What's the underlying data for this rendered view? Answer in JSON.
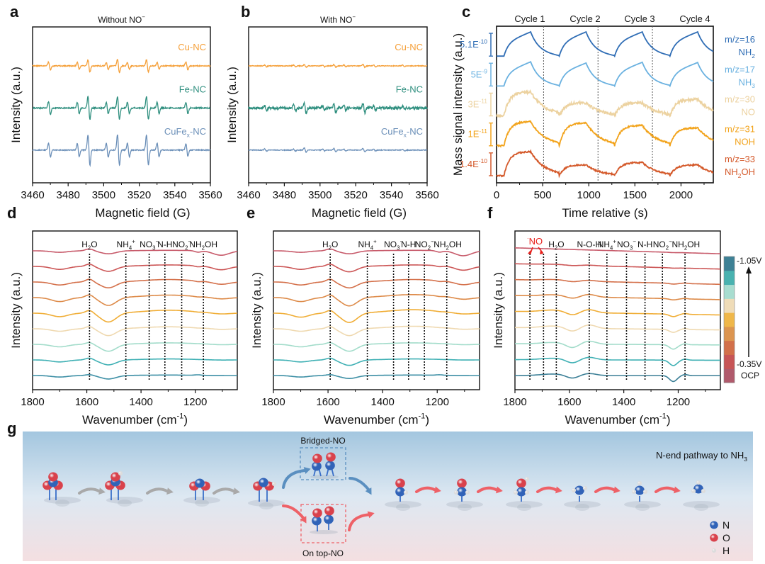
{
  "panel_letters": [
    "a",
    "b",
    "c",
    "d",
    "e",
    "f",
    "g"
  ],
  "chart_data": [
    {
      "id": "a",
      "type": "line",
      "title": "Without NO3-",
      "title_parts": {
        "base": "Without NO",
        "sub": "3",
        "sup": "−"
      },
      "xlabel": "Magnetic field (G)",
      "ylabel": "Intensity (a.u.)",
      "xlim": [
        3460,
        3560
      ],
      "xticks": [
        3460,
        3480,
        3500,
        3520,
        3540,
        3560
      ],
      "grid": false,
      "peak_positions_G": [
        3469.5,
        3485.7,
        3491.7,
        3502.0,
        3508.3,
        3513.9,
        3524.6,
        3530.6,
        3546.8
      ],
      "series": [
        {
          "name": "Cu-NC",
          "label_base": "Cu-NC",
          "color": "#f5a03a",
          "offset": 2,
          "peak_amplitudes": [
            0.35,
            0.3,
            0.55,
            0.3,
            0.6,
            0.3,
            0.55,
            0.3,
            0.35
          ],
          "noise": 0.04
        },
        {
          "name": "Fe-NC",
          "label_base": "Fe-NC",
          "color": "#2f8f7f",
          "offset": 1,
          "peak_amplitudes": [
            0.55,
            0.5,
            1.0,
            0.5,
            1.0,
            0.5,
            1.0,
            0.5,
            0.5
          ],
          "noise": 0.05
        },
        {
          "name": "CuFex-NC",
          "label_base": "CuFe",
          "label_sub": "x",
          "label_tail": "-NC",
          "color": "#6b8fb8",
          "offset": 0,
          "peak_amplitudes": [
            0.6,
            0.6,
            1.35,
            0.6,
            1.35,
            0.6,
            1.3,
            0.6,
            0.55
          ],
          "noise": 0.04
        }
      ]
    },
    {
      "id": "b",
      "type": "line",
      "title": "With NO3-",
      "title_parts": {
        "base": "With NO",
        "sub": "3",
        "sup": "−"
      },
      "xlabel": "Magnetic field (G)",
      "ylabel": "Intensity (a.u.)",
      "xlim": [
        3460,
        3560
      ],
      "xticks": [
        3460,
        3480,
        3500,
        3520,
        3540,
        3560
      ],
      "grid": false,
      "peak_positions_G": [
        3469.5,
        3485.7,
        3491.7,
        3502.0,
        3508.3,
        3513.9,
        3524.6,
        3530.6,
        3546.8
      ],
      "series": [
        {
          "name": "Cu-NC",
          "label_base": "Cu-NC",
          "color": "#f5a03a",
          "offset": 2,
          "peak_amplitudes": [
            0.08,
            0.08,
            0.12,
            0.08,
            0.12,
            0.08,
            0.12,
            0.08,
            0.08
          ],
          "noise": 0.03
        },
        {
          "name": "Fe-NC",
          "label_base": "Fe-NC",
          "color": "#2f8f7f",
          "offset": 1,
          "peak_amplitudes": [
            0.2,
            0.25,
            0.45,
            0.2,
            0.4,
            0.2,
            0.4,
            0.2,
            0.15
          ],
          "noise": 0.12
        },
        {
          "name": "CuFex-NC",
          "label_base": "CuFe",
          "label_sub": "x",
          "label_tail": "-NC",
          "color": "#6b8fb8",
          "offset": 0,
          "peak_amplitudes": [
            0.1,
            0.08,
            0.18,
            0.08,
            0.15,
            0.08,
            0.15,
            0.08,
            0.08
          ],
          "noise": 0.03
        }
      ]
    },
    {
      "id": "c",
      "type": "line",
      "xlabel": "Time relative (s)",
      "ylabel": "Mass signal intensity (a.u.)",
      "xlim": [
        0,
        2350
      ],
      "xticks": [
        0,
        500,
        1000,
        1500,
        2000
      ],
      "cycle_labels": [
        "Cycle 1",
        "Cycle 2",
        "Cycle 3",
        "Cycle 4"
      ],
      "cycle_boundaries_s": [
        510,
        1100,
        1690
      ],
      "cycle_starts_s": [
        80,
        680,
        1280,
        1880
      ],
      "cycle_peaks_s": [
        370,
        970,
        1580,
        2180
      ],
      "grid": false,
      "series": [
        {
          "name": "m/z=16 NH2",
          "mz": "m/z=16",
          "species_base": "NH",
          "species_sub": "2",
          "species_tail": "",
          "scale_bar": "5.1E",
          "scale_exp": "-10",
          "color": "#2f6db5",
          "shape": "smooth",
          "cycle_heights": [
            1.0,
            1.0,
            1.0,
            1.0
          ]
        },
        {
          "name": "m/z=17 NH3",
          "mz": "m/z=17",
          "species_base": "NH",
          "species_sub": "3",
          "species_tail": "",
          "scale_bar": "5E",
          "scale_exp": "-9",
          "color": "#6ab1e0",
          "shape": "smooth",
          "cycle_heights": [
            1.0,
            0.95,
            0.98,
            0.97
          ]
        },
        {
          "name": "m/z=30 NO",
          "mz": "m/z=30",
          "species_base": "NO",
          "species_sub": "",
          "species_tail": "",
          "scale_bar": "3E",
          "scale_exp": "-11",
          "color": "#ecd2a0",
          "shape": "noisy",
          "cycle_heights": [
            1.0,
            0.55,
            0.55,
            0.7
          ]
        },
        {
          "name": "m/z=31 NOH",
          "mz": "m/z=31",
          "species_base": "NOH",
          "species_sub": "",
          "species_tail": "",
          "scale_bar": "1E",
          "scale_exp": "-11",
          "color": "#f2a31b",
          "shape": "plateau",
          "cycle_heights": [
            1.0,
            0.95,
            0.85,
            0.75
          ]
        },
        {
          "name": "m/z=33 NH2OH",
          "mz": "m/z=33",
          "species_base": "NH",
          "species_sub": "2",
          "species_tail": "OH",
          "scale_bar": "1.4E",
          "scale_exp": "-10",
          "color": "#d4592a",
          "shape": "plateau",
          "cycle_heights": [
            1.0,
            0.45,
            0.55,
            0.45
          ]
        }
      ]
    },
    {
      "id": "d",
      "type": "line",
      "xlabel": "Wavenumber (cm-1)",
      "xlabel_parts": {
        "base": "Wavenumber (cm",
        "sup": "-1",
        "tail": ")"
      },
      "ylabel": "Intensity (a.u.)",
      "xlim": [
        1800,
        1045
      ],
      "xticks": [
        1800,
        1600,
        1400,
        1200
      ],
      "grid": false,
      "markers": [
        {
          "pos": 1590,
          "base": "H",
          "sub": "2",
          "tail": "O",
          "sup": "",
          "dot": false
        },
        {
          "pos": 1456,
          "base": "NH",
          "sub": "4",
          "sup": "+",
          "tail": "",
          "dot": false
        },
        {
          "pos": 1370,
          "base": "NO",
          "sub": "3",
          "sup": "−",
          "tail": "",
          "dot": false
        },
        {
          "pos": 1312,
          "base": "N-H",
          "sub": "",
          "sup": "",
          "tail": "",
          "dot": false
        },
        {
          "pos": 1250,
          "base": "NO",
          "sub": "2",
          "sup": "−",
          "tail": "",
          "dot": false
        },
        {
          "pos": 1170,
          "base": "NH",
          "sub": "2",
          "tail": "OH",
          "sup": "",
          "dot": false
        }
      ],
      "series_count": 9,
      "features": [
        {
          "center": 1520,
          "width": 28,
          "depths": [
            0.3,
            0.5,
            0.6,
            0.8,
            0.9,
            0.7,
            0.7,
            0.5,
            0.35
          ]
        },
        {
          "center": 1700,
          "width": 30,
          "depths": [
            0.15,
            0.3,
            0.3,
            0.4,
            0.35,
            0.25,
            0.25,
            0.2,
            0.15
          ]
        },
        {
          "center": 1590,
          "width": 14,
          "depths": [
            -0.2,
            -0.25,
            -0.3,
            -0.3,
            -0.3,
            -0.25,
            -0.2,
            -0.2,
            -0.1
          ]
        },
        {
          "center": 1300,
          "width": 90,
          "depths": [
            -0.05,
            -0.15,
            -0.25,
            -0.25,
            -0.3,
            -0.2,
            -0.15,
            -0.1,
            -0.05
          ]
        },
        {
          "center": 1105,
          "width": 30,
          "depths": [
            0.45,
            0.35,
            0.25,
            0.15,
            0.1,
            0.08,
            0.05,
            0.02,
            0.0
          ]
        },
        {
          "center": 1190,
          "width": 12,
          "depths": [
            0.15,
            0.1,
            0.08,
            0.05,
            0.03,
            0.02,
            0.0,
            0.0,
            -0.05
          ]
        }
      ]
    },
    {
      "id": "e",
      "type": "line",
      "xlabel": "Wavenumber (cm-1)",
      "xlabel_parts": {
        "base": "Wavenumber (cm",
        "sup": "-1",
        "tail": ")"
      },
      "ylabel": "Intensity (a.u.)",
      "xlim": [
        1800,
        1045
      ],
      "xticks": [
        1800,
        1600,
        1400,
        1200
      ],
      "grid": false,
      "markers": [
        {
          "pos": 1592,
          "base": "H",
          "sub": "2",
          "tail": "O",
          "sup": "",
          "dot": false
        },
        {
          "pos": 1456,
          "base": "NH",
          "sub": "4",
          "sup": "+",
          "tail": "",
          "dot": false
        },
        {
          "pos": 1360,
          "base": "NO",
          "sub": "3",
          "sup": "−",
          "tail": "",
          "dot": false
        },
        {
          "pos": 1305,
          "base": "N-H",
          "sub": "",
          "sup": "",
          "tail": "",
          "dot": false
        },
        {
          "pos": 1247,
          "base": "NO",
          "sub": "2",
          "sup": "−",
          "tail": "",
          "dot": false
        },
        {
          "pos": 1165,
          "base": "NH",
          "sub": "2",
          "tail": "OH",
          "sup": "",
          "dot": true
        }
      ],
      "series_count": 9,
      "features": [
        {
          "center": 1522,
          "width": 28,
          "depths": [
            0.3,
            0.55,
            0.6,
            0.85,
            0.95,
            0.7,
            0.7,
            0.55,
            0.3
          ]
        },
        {
          "center": 1700,
          "width": 30,
          "depths": [
            0.15,
            0.3,
            0.3,
            0.4,
            0.4,
            0.25,
            0.25,
            0.2,
            0.15
          ]
        },
        {
          "center": 1592,
          "width": 14,
          "depths": [
            -0.2,
            -0.25,
            -0.3,
            -0.3,
            -0.3,
            -0.25,
            -0.2,
            -0.2,
            -0.1
          ]
        },
        {
          "center": 1290,
          "width": 90,
          "depths": [
            -0.05,
            -0.15,
            -0.25,
            -0.3,
            -0.35,
            -0.25,
            -0.15,
            -0.1,
            -0.05
          ]
        },
        {
          "center": 1105,
          "width": 30,
          "depths": [
            0.5,
            0.4,
            0.3,
            0.2,
            0.12,
            0.08,
            0.05,
            0.02,
            0.0
          ]
        },
        {
          "center": 1192,
          "width": 12,
          "depths": [
            0.15,
            0.1,
            0.08,
            0.05,
            0.03,
            0.02,
            0.0,
            0.0,
            -0.05
          ]
        }
      ]
    },
    {
      "id": "f",
      "type": "line",
      "xlabel": "Wavenumber (cm-1)",
      "xlabel_parts": {
        "base": "Wavenumber (cm",
        "sup": "-1",
        "tail": ")"
      },
      "ylabel": "Intensity (a.u.)",
      "xlim": [
        1800,
        1045
      ],
      "xticks": [
        1800,
        1600,
        1400,
        1200
      ],
      "grid": false,
      "no_label": {
        "text": "NO",
        "dot": true,
        "color": "#e8211d",
        "positions": [
          1745,
          1695
        ]
      },
      "markers": [
        {
          "pos": 1745,
          "base": "",
          "sub": "",
          "sup": "",
          "tail": "",
          "dot": false
        },
        {
          "pos": 1695,
          "base": "",
          "sub": "",
          "sup": "",
          "tail": "",
          "dot": false
        },
        {
          "pos": 1648,
          "base": "H",
          "sub": "2",
          "tail": "O",
          "sup": "",
          "dot": false
        },
        {
          "pos": 1527,
          "base": "N-O-H",
          "sub": "",
          "sup": "",
          "tail": "",
          "dot": false
        },
        {
          "pos": 1462,
          "base": "NH",
          "sub": "4",
          "sup": "+",
          "tail": "",
          "dot": false
        },
        {
          "pos": 1390,
          "base": "NO",
          "sub": "3",
          "sup": "−",
          "tail": "",
          "dot": false
        },
        {
          "pos": 1322,
          "base": "N-H",
          "sub": "",
          "sup": "",
          "tail": "",
          "dot": false
        },
        {
          "pos": 1258,
          "base": "NO",
          "sub": "2",
          "sup": "−",
          "tail": "",
          "dot": false
        },
        {
          "pos": 1175,
          "base": "NH",
          "sub": "2",
          "tail": "OH",
          "sup": "",
          "dot": true
        }
      ],
      "series_count": 9,
      "features": [
        {
          "center": 1218,
          "width": 14,
          "depths": [
            0.02,
            0.03,
            0.08,
            0.12,
            0.25,
            0.3,
            0.45,
            0.55,
            0.6
          ]
        },
        {
          "center": 1590,
          "width": 22,
          "depths": [
            0.0,
            0.05,
            0.1,
            0.2,
            0.3,
            0.35,
            0.4,
            0.35,
            0.3
          ]
        },
        {
          "center": 1527,
          "width": 25,
          "depths": [
            0.0,
            -0.05,
            -0.1,
            -0.25,
            -0.3,
            -0.35,
            -0.3,
            -0.25,
            -0.2
          ]
        },
        {
          "center": 1660,
          "width": 45,
          "depths": [
            0.0,
            -0.05,
            -0.1,
            -0.15,
            -0.2,
            -0.2,
            -0.15,
            -0.15,
            -0.15
          ]
        },
        {
          "center": 1175,
          "width": 10,
          "depths": [
            0.0,
            0.0,
            -0.05,
            -0.05,
            -0.08,
            -0.1,
            -0.1,
            -0.1,
            -0.1
          ]
        }
      ],
      "tilt": [
        0.0,
        0.05,
        0.1,
        0.2,
        0.3,
        0.35,
        0.4,
        0.45,
        0.5
      ],
      "colorbar": {
        "colors": [
          "#b05a6c",
          "#c75556",
          "#d2704a",
          "#dc9550",
          "#efb74a",
          "#efdcb8",
          "#a8ddd0",
          "#49b2b0",
          "#3e8195"
        ],
        "label_top": "-1.05V",
        "label_mid": "-0.35V",
        "label_bottom": "OCP"
      }
    }
  ],
  "ir_line_colors": [
    "#c75a6a",
    "#cc5656",
    "#d4704a",
    "#dd8a48",
    "#f0ad35",
    "#efd9b0",
    "#a2dcca",
    "#3fb0b4",
    "#3d8fa5"
  ],
  "ir_line_colors_f": [
    "#c75a6a",
    "#cc5656",
    "#d4704a",
    "#dd8a48",
    "#f0ad35",
    "#efd9b0",
    "#a2dcca",
    "#3fb0b4",
    "#3b7f96"
  ],
  "scheme": {
    "bridged_label": "Bridged-NO",
    "ontop_label": "On top-NO",
    "pathway_label_base": "N-end pathway to NH",
    "pathway_label_sub": "3",
    "legend": [
      {
        "atom": "N",
        "color": "#3163b8"
      },
      {
        "atom": "O",
        "color": "#d9424c"
      },
      {
        "atom": "H",
        "color": "#f2f2f2"
      }
    ],
    "gradient_top": "#a3c6df",
    "gradient_mid": "#dde8f2",
    "gradient_bottom": "#f4dfe1",
    "gray_arrow_color": "#a9a9a9",
    "blue_arrow_color": "#5a8fc0",
    "red_arrow_color": "#ee6167",
    "bridged_box_color": "#5a8fc0",
    "ontop_box_color": "#ee6167"
  }
}
